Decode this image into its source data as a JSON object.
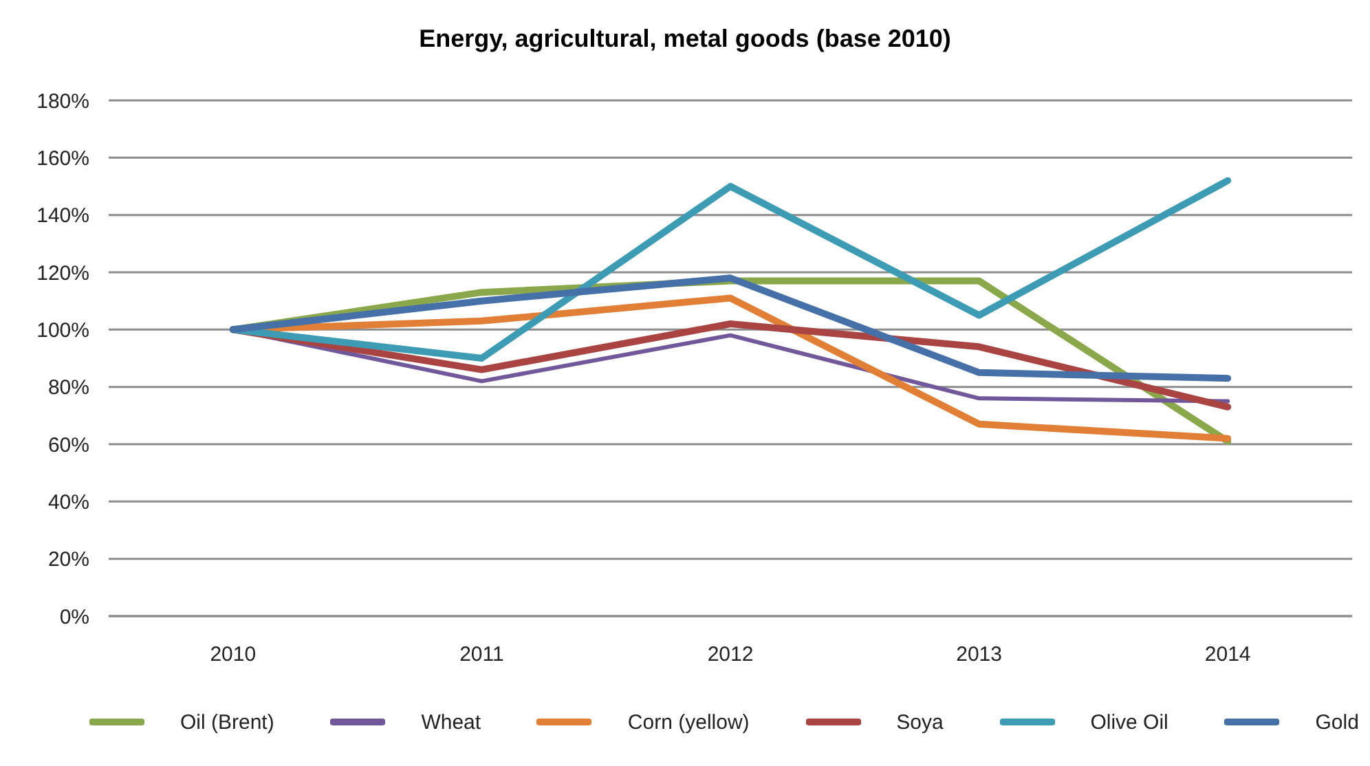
{
  "chart_data": {
    "type": "line",
    "title": "Energy, agricultural, metal goods (base 2010)",
    "categories": [
      "2010",
      "2011",
      "2012",
      "2013",
      "2014"
    ],
    "series": [
      {
        "name": "Oil (Brent)",
        "color": "#8aa84b",
        "values": [
          100,
          113,
          117,
          117,
          61
        ]
      },
      {
        "name": "Wheat",
        "color": "#71589a",
        "values": [
          100,
          82,
          98,
          76,
          75
        ]
      },
      {
        "name": "Corn (yellow)",
        "color": "#e07f35",
        "values": [
          100,
          103,
          111,
          67,
          62
        ]
      },
      {
        "name": "Soya",
        "color": "#a94442",
        "values": [
          100,
          86,
          102,
          94,
          73
        ]
      },
      {
        "name": "Olive Oil",
        "color": "#3d9cb4",
        "values": [
          100,
          90,
          150,
          105,
          152
        ]
      },
      {
        "name": "Gold",
        "color": "#4670a8",
        "values": [
          100,
          110,
          118,
          85,
          83
        ]
      }
    ],
    "ylim": [
      0,
      180
    ],
    "yticks": [
      {
        "value": 0,
        "label": "0%"
      },
      {
        "value": 20,
        "label": "20%"
      },
      {
        "value": 40,
        "label": "40%"
      },
      {
        "value": 60,
        "label": "60%"
      },
      {
        "value": 80,
        "label": "80%"
      },
      {
        "value": 100,
        "label": "100%"
      },
      {
        "value": 120,
        "label": "120%"
      },
      {
        "value": 140,
        "label": "140%"
      },
      {
        "value": 160,
        "label": "160%"
      },
      {
        "value": 180,
        "label": "180%"
      }
    ],
    "grid": "y",
    "legend": "bottom"
  }
}
